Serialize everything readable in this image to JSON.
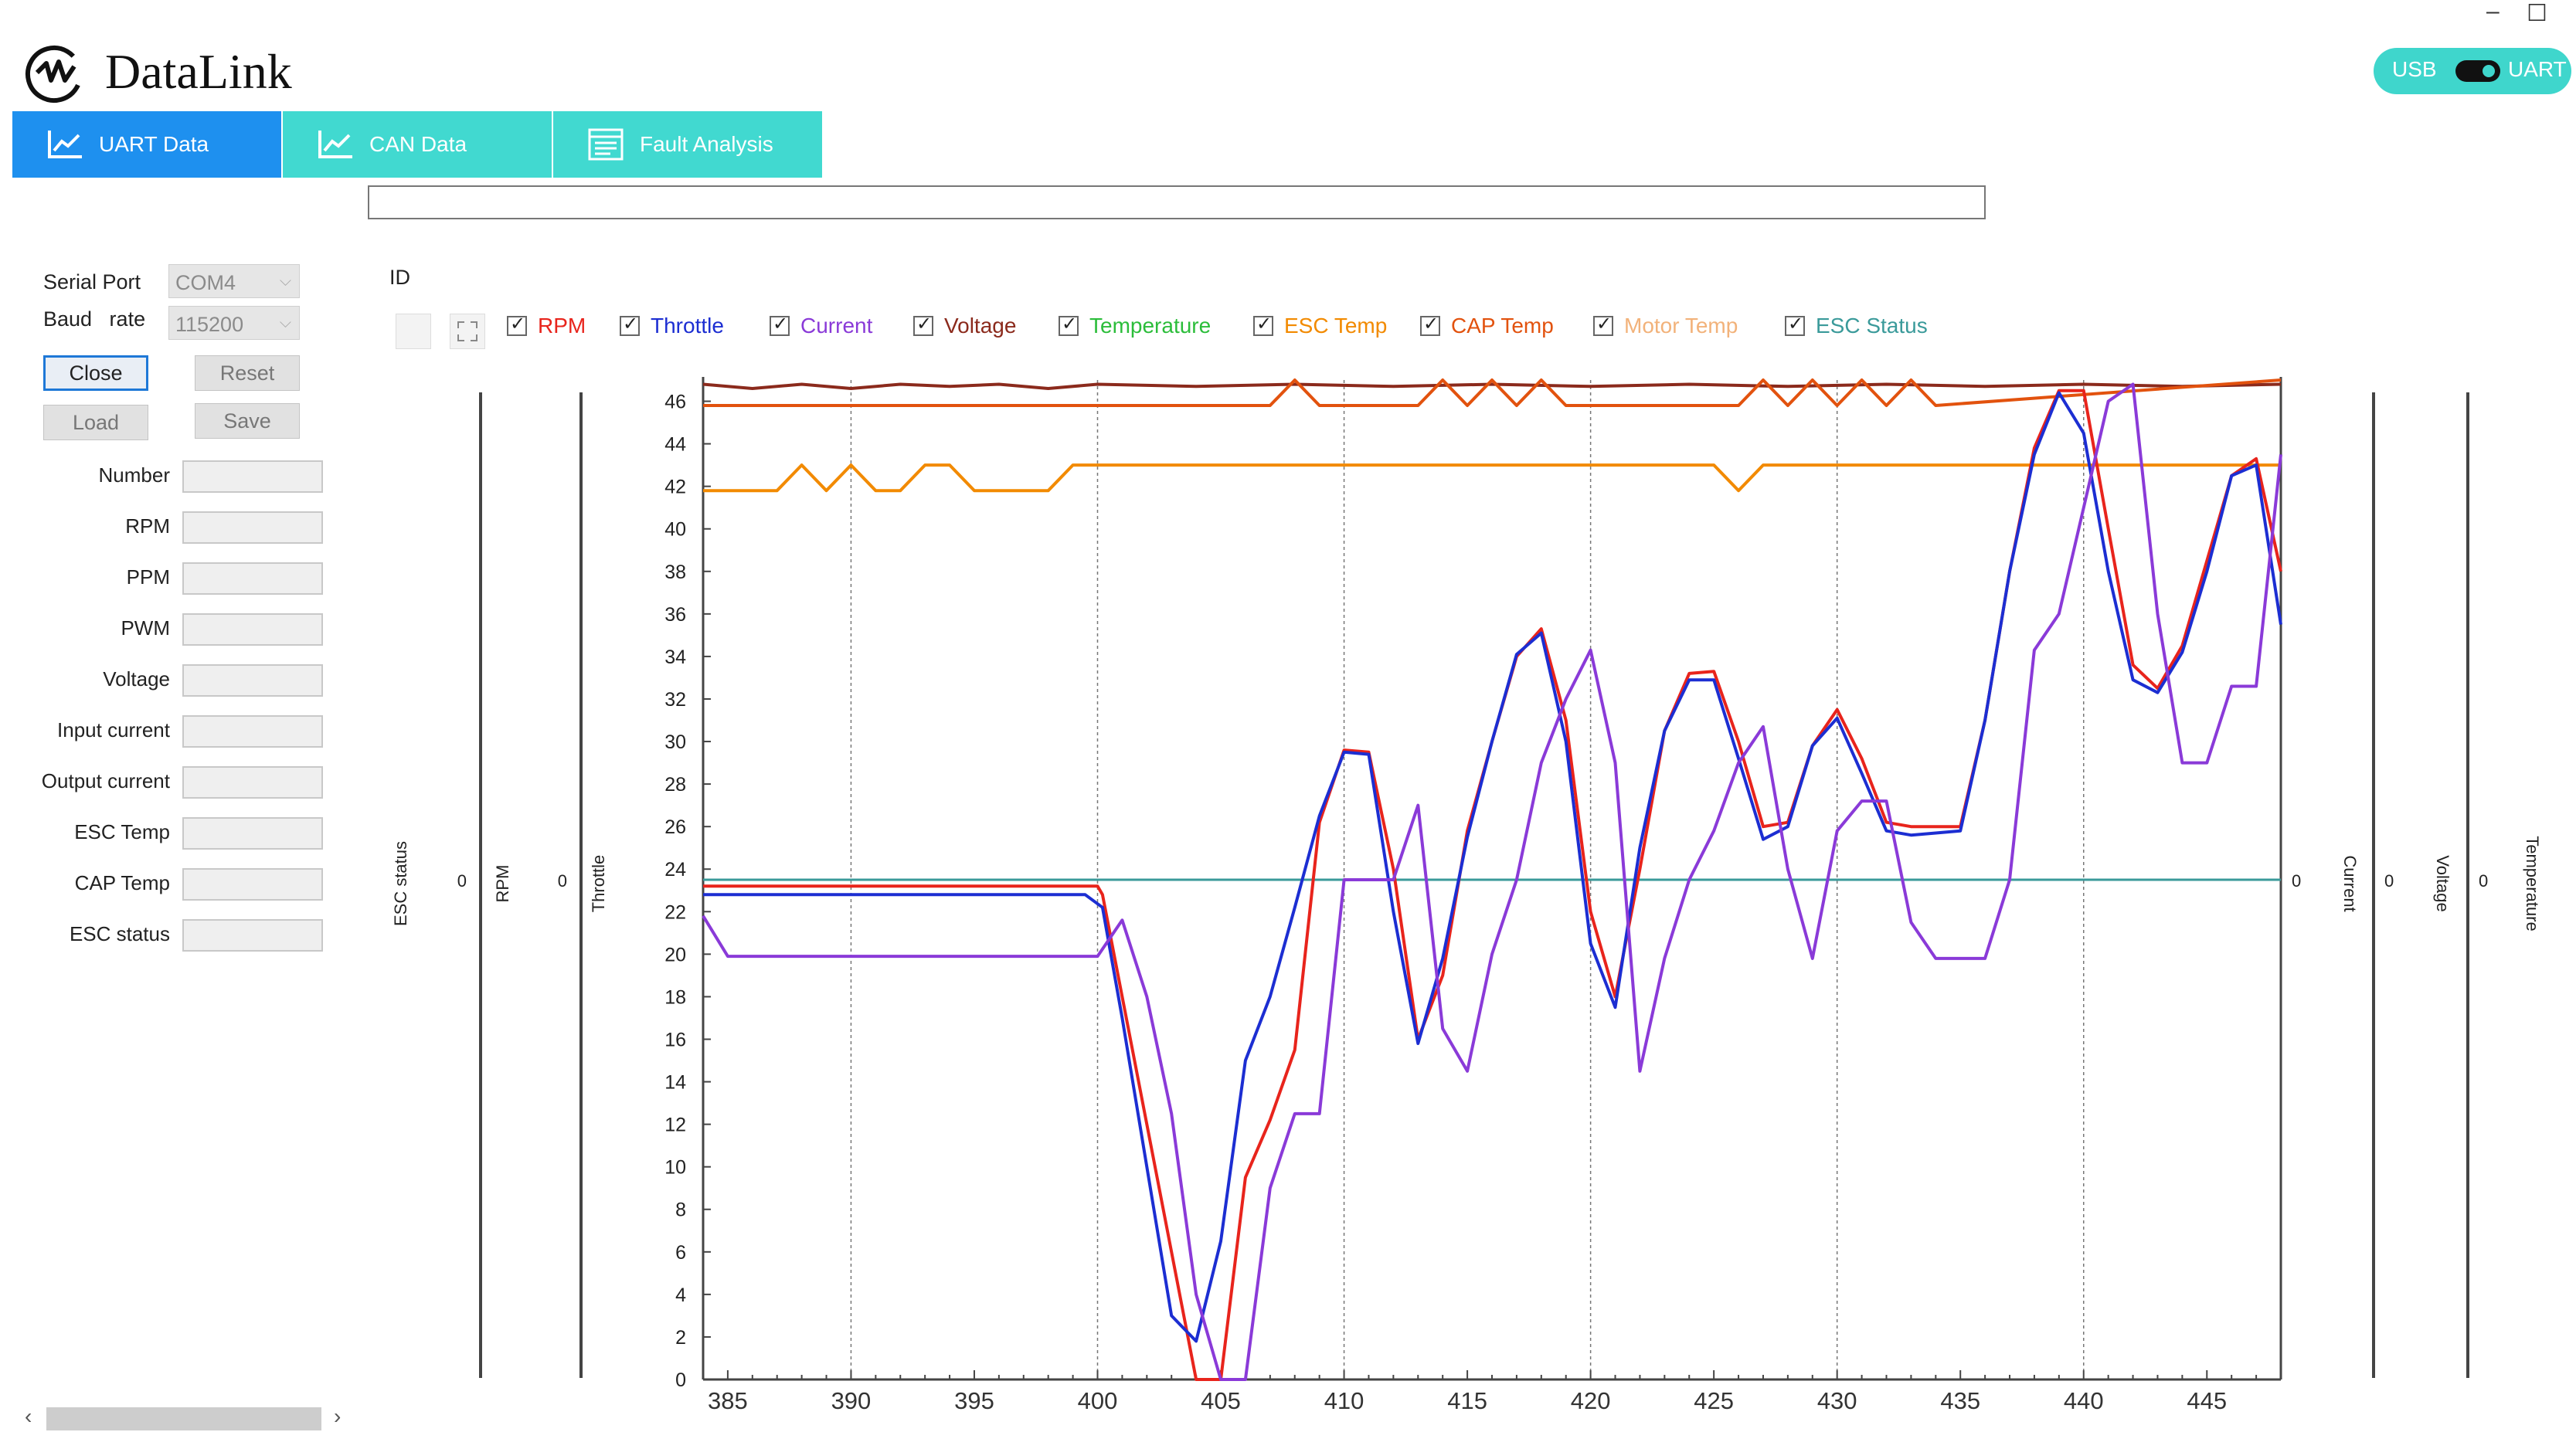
{
  "window": {
    "minimize_glyph": "–",
    "maximize_glyph": "☐"
  },
  "app": {
    "title": "DataLink"
  },
  "toggle": {
    "left_label": "USB",
    "right_label": "UART",
    "selected": "UART"
  },
  "tabs": [
    {
      "label": "UART Data",
      "active": true
    },
    {
      "label": "CAN Data",
      "active": false
    },
    {
      "label": "Fault Analysis",
      "active": false
    }
  ],
  "id_label": "ID",
  "serial": {
    "port_label": "Serial Port",
    "port_value": "COM4",
    "baud_label": "Baud   rate",
    "baud_value": "115200"
  },
  "buttons": {
    "close": "Close",
    "reset": "Reset",
    "load": "Load",
    "save": "Save"
  },
  "fields": [
    {
      "label": "Number"
    },
    {
      "label": "RPM"
    },
    {
      "label": "PPM"
    },
    {
      "label": "PWM"
    },
    {
      "label": "Voltage"
    },
    {
      "label": "Input current"
    },
    {
      "label": "Output current"
    },
    {
      "label": "ESC Temp"
    },
    {
      "label": "CAP Temp"
    },
    {
      "label": "ESC status"
    }
  ],
  "legend": [
    {
      "label": "RPM",
      "color": "#e8241c",
      "checked": true
    },
    {
      "label": "Throttle",
      "color": "#1c2ed2",
      "checked": true
    },
    {
      "label": "Current",
      "color": "#8a3ad8",
      "checked": true
    },
    {
      "label": "Voltage",
      "color": "#8b2a1c",
      "checked": true
    },
    {
      "label": "Temperature",
      "color": "#2bbd3a",
      "checked": true
    },
    {
      "label": "ESC Temp",
      "color": "#f28a00",
      "checked": true
    },
    {
      "label": "CAP Temp",
      "color": "#e2520e",
      "checked": true
    },
    {
      "label": "Motor Temp",
      "color": "#f2b27a",
      "checked": true
    },
    {
      "label": "ESC Status",
      "color": "#3a9a9a",
      "checked": true
    }
  ],
  "axes": {
    "left": [
      {
        "label": "ESC status",
        "zero": "0"
      },
      {
        "label": "RPM",
        "zero": "0"
      },
      {
        "label": "Throttle"
      }
    ],
    "right": [
      {
        "label": "Current",
        "zero": "0"
      },
      {
        "label": "Voltage",
        "zero": "0"
      },
      {
        "label": "Temperature",
        "zero": "0"
      }
    ]
  },
  "chart_data": {
    "type": "line",
    "xlim": [
      384,
      448
    ],
    "ylim": [
      0,
      47
    ],
    "x_ticks": [
      385,
      390,
      395,
      400,
      405,
      410,
      415,
      420,
      425,
      430,
      435,
      440,
      445
    ],
    "y_ticks": [
      0,
      2,
      4,
      6,
      8,
      10,
      12,
      14,
      16,
      18,
      20,
      22,
      24,
      26,
      28,
      30,
      32,
      34,
      36,
      38,
      40,
      42,
      44,
      46
    ],
    "vgrid": [
      390,
      400,
      410,
      420,
      430,
      440
    ],
    "series": [
      {
        "name": "Voltage",
        "color": "#8b2a1c",
        "points": [
          [
            384,
            46.8
          ],
          [
            386,
            46.6
          ],
          [
            388,
            46.8
          ],
          [
            390,
            46.6
          ],
          [
            392,
            46.8
          ],
          [
            394,
            46.7
          ],
          [
            396,
            46.8
          ],
          [
            398,
            46.6
          ],
          [
            400,
            46.8
          ],
          [
            404,
            46.7
          ],
          [
            408,
            46.8
          ],
          [
            412,
            46.7
          ],
          [
            416,
            46.8
          ],
          [
            420,
            46.7
          ],
          [
            424,
            46.8
          ],
          [
            428,
            46.7
          ],
          [
            432,
            46.8
          ],
          [
            436,
            46.7
          ],
          [
            440,
            46.8
          ],
          [
            444,
            46.7
          ],
          [
            448,
            46.8
          ]
        ]
      },
      {
        "name": "CAP Temp",
        "color": "#e2520e",
        "points": [
          [
            384,
            45.8
          ],
          [
            406,
            45.8
          ],
          [
            407,
            45.8
          ],
          [
            408,
            47
          ],
          [
            409,
            45.8
          ],
          [
            413,
            45.8
          ],
          [
            414,
            47
          ],
          [
            415,
            45.8
          ],
          [
            416,
            47
          ],
          [
            417,
            45.8
          ],
          [
            418,
            47
          ],
          [
            419,
            45.8
          ],
          [
            426,
            45.8
          ],
          [
            427,
            47
          ],
          [
            428,
            45.8
          ],
          [
            429,
            47
          ],
          [
            430,
            45.8
          ],
          [
            431,
            47
          ],
          [
            432,
            45.8
          ],
          [
            433,
            47
          ],
          [
            434,
            45.8
          ],
          [
            448,
            47
          ]
        ]
      },
      {
        "name": "ESC Temp",
        "color": "#f28a00",
        "points": [
          [
            384,
            41.8
          ],
          [
            387,
            41.8
          ],
          [
            388,
            43
          ],
          [
            389,
            41.8
          ],
          [
            390,
            43
          ],
          [
            391,
            41.8
          ],
          [
            392,
            41.8
          ],
          [
            393,
            43
          ],
          [
            394,
            43
          ],
          [
            395,
            41.8
          ],
          [
            397,
            41.8
          ],
          [
            398,
            41.8
          ],
          [
            399,
            43
          ],
          [
            405,
            43
          ],
          [
            425,
            43
          ],
          [
            426,
            41.8
          ],
          [
            427,
            43
          ],
          [
            448,
            43
          ]
        ]
      },
      {
        "name": "ESC Status",
        "color": "#3a9a9a",
        "points": [
          [
            384,
            23.5
          ],
          [
            448,
            23.5
          ]
        ]
      },
      {
        "name": "RPM",
        "color": "#e8241c",
        "points": [
          [
            384,
            23.2
          ],
          [
            400,
            23.2
          ],
          [
            400.2,
            22.8
          ],
          [
            401,
            18
          ],
          [
            402,
            12
          ],
          [
            403,
            6
          ],
          [
            404,
            0
          ],
          [
            405,
            0
          ],
          [
            406,
            9.5
          ],
          [
            407,
            12.2
          ],
          [
            408,
            15.5
          ],
          [
            409,
            26.2
          ],
          [
            410,
            29.6
          ],
          [
            411,
            29.5
          ],
          [
            412,
            24
          ],
          [
            413,
            16
          ],
          [
            414,
            19
          ],
          [
            415,
            25.8
          ],
          [
            416,
            30
          ],
          [
            417,
            34
          ],
          [
            418,
            35.3
          ],
          [
            419,
            31
          ],
          [
            420,
            22
          ],
          [
            421,
            18
          ],
          [
            422,
            24
          ],
          [
            423,
            30.5
          ],
          [
            424,
            33.2
          ],
          [
            425,
            33.3
          ],
          [
            426,
            30
          ],
          [
            427,
            26
          ],
          [
            428,
            26.2
          ],
          [
            429,
            29.8
          ],
          [
            430,
            31.5
          ],
          [
            431,
            29.2
          ],
          [
            432,
            26.2
          ],
          [
            433,
            26
          ],
          [
            435,
            26
          ],
          [
            436,
            31
          ],
          [
            437,
            38
          ],
          [
            438,
            43.8
          ],
          [
            439,
            46.5
          ],
          [
            440,
            46.5
          ],
          [
            441,
            40
          ],
          [
            442,
            33.6
          ],
          [
            443,
            32.5
          ],
          [
            444,
            34.5
          ],
          [
            445,
            38.5
          ],
          [
            446,
            42.5
          ],
          [
            447,
            43.3
          ],
          [
            448,
            38
          ]
        ]
      },
      {
        "name": "Throttle",
        "color": "#1c2ed2",
        "points": [
          [
            384,
            22.8
          ],
          [
            399.5,
            22.8
          ],
          [
            400.2,
            22.2
          ],
          [
            401,
            17
          ],
          [
            402,
            10
          ],
          [
            403,
            3
          ],
          [
            404,
            1.8
          ],
          [
            405,
            6.5
          ],
          [
            406,
            15
          ],
          [
            407,
            18
          ],
          [
            408,
            22.2
          ],
          [
            409,
            26.5
          ],
          [
            410,
            29.5
          ],
          [
            411,
            29.4
          ],
          [
            412,
            22
          ],
          [
            413,
            15.8
          ],
          [
            414,
            19.8
          ],
          [
            415,
            25.5
          ],
          [
            416,
            30
          ],
          [
            417,
            34.1
          ],
          [
            418,
            35.1
          ],
          [
            419,
            30
          ],
          [
            420,
            20.5
          ],
          [
            421,
            17.5
          ],
          [
            422,
            25
          ],
          [
            423,
            30.5
          ],
          [
            424,
            32.9
          ],
          [
            425,
            32.9
          ],
          [
            426,
            29.2
          ],
          [
            427,
            25.4
          ],
          [
            428,
            26
          ],
          [
            429,
            29.8
          ],
          [
            430,
            31.1
          ],
          [
            431,
            28.5
          ],
          [
            432,
            25.8
          ],
          [
            433,
            25.6
          ],
          [
            435,
            25.8
          ],
          [
            436,
            31
          ],
          [
            437,
            38
          ],
          [
            438,
            43.5
          ],
          [
            439,
            46.4
          ],
          [
            440,
            44.5
          ],
          [
            441,
            38
          ],
          [
            442,
            32.9
          ],
          [
            443,
            32.3
          ],
          [
            444,
            34.2
          ],
          [
            445,
            38
          ],
          [
            446,
            42.5
          ],
          [
            447,
            43
          ],
          [
            448,
            35.5
          ]
        ]
      },
      {
        "name": "Current",
        "color": "#8a3ad8",
        "points": [
          [
            384,
            21.8
          ],
          [
            385,
            19.9
          ],
          [
            400,
            19.9
          ],
          [
            401,
            21.6
          ],
          [
            402,
            18
          ],
          [
            403,
            12.5
          ],
          [
            404,
            4
          ],
          [
            405,
            0
          ],
          [
            406,
            0
          ],
          [
            407,
            9
          ],
          [
            408,
            12.5
          ],
          [
            409,
            12.5
          ],
          [
            410,
            23.5
          ],
          [
            411,
            23.5
          ],
          [
            412,
            23.5
          ],
          [
            413,
            27
          ],
          [
            414,
            16.5
          ],
          [
            415,
            14.5
          ],
          [
            416,
            20
          ],
          [
            417,
            23.5
          ],
          [
            418,
            29
          ],
          [
            419,
            32
          ],
          [
            420,
            34.3
          ],
          [
            421,
            29
          ],
          [
            422,
            14.5
          ],
          [
            423,
            19.8
          ],
          [
            424,
            23.5
          ],
          [
            425,
            25.8
          ],
          [
            426,
            29
          ],
          [
            427,
            30.7
          ],
          [
            428,
            24
          ],
          [
            429,
            19.8
          ],
          [
            430,
            25.8
          ],
          [
            431,
            27.2
          ],
          [
            432,
            27.2
          ],
          [
            433,
            21.5
          ],
          [
            434,
            19.8
          ],
          [
            436,
            19.8
          ],
          [
            437,
            23.5
          ],
          [
            438,
            34.3
          ],
          [
            439,
            36
          ],
          [
            440,
            41
          ],
          [
            441,
            46
          ],
          [
            442,
            46.8
          ],
          [
            443,
            36
          ],
          [
            444,
            29
          ],
          [
            445,
            29
          ],
          [
            446,
            32.6
          ],
          [
            447,
            32.6
          ],
          [
            448,
            43.5
          ]
        ]
      }
    ]
  }
}
